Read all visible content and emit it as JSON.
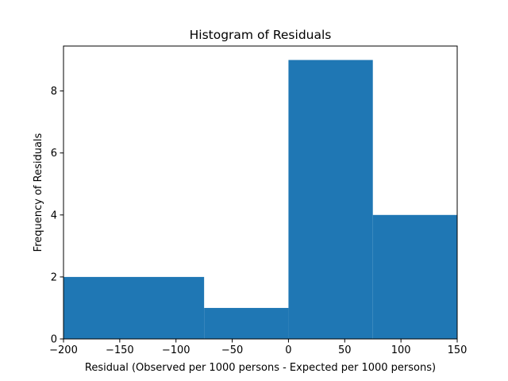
{
  "chart_data": {
    "type": "bar",
    "title": "Histogram of Residuals",
    "xlabel": "Residual (Observed per 1000 persons - Expected per 1000 persons)",
    "ylabel": "Frequency of Residuals",
    "xlim": [
      -200,
      150
    ],
    "ylim": [
      0,
      9.45
    ],
    "bins": [
      {
        "start": -200,
        "end": -75,
        "count": 2
      },
      {
        "start": -75,
        "end": 0,
        "count": 1
      },
      {
        "start": 0,
        "end": 75,
        "count": 9
      },
      {
        "start": 75,
        "end": 150,
        "count": 4
      }
    ],
    "xticks": [
      {
        "value": -200,
        "label": "−200"
      },
      {
        "value": -150,
        "label": "−150"
      },
      {
        "value": -100,
        "label": "−100"
      },
      {
        "value": -50,
        "label": "−50"
      },
      {
        "value": 0,
        "label": "0"
      },
      {
        "value": 50,
        "label": "50"
      },
      {
        "value": 100,
        "label": "100"
      },
      {
        "value": 150,
        "label": "150"
      }
    ],
    "yticks": [
      {
        "value": 0,
        "label": "0"
      },
      {
        "value": 2,
        "label": "2"
      },
      {
        "value": 4,
        "label": "4"
      },
      {
        "value": 6,
        "label": "6"
      },
      {
        "value": 8,
        "label": "8"
      }
    ],
    "bar_color": "#1f77b4",
    "grid": false
  }
}
